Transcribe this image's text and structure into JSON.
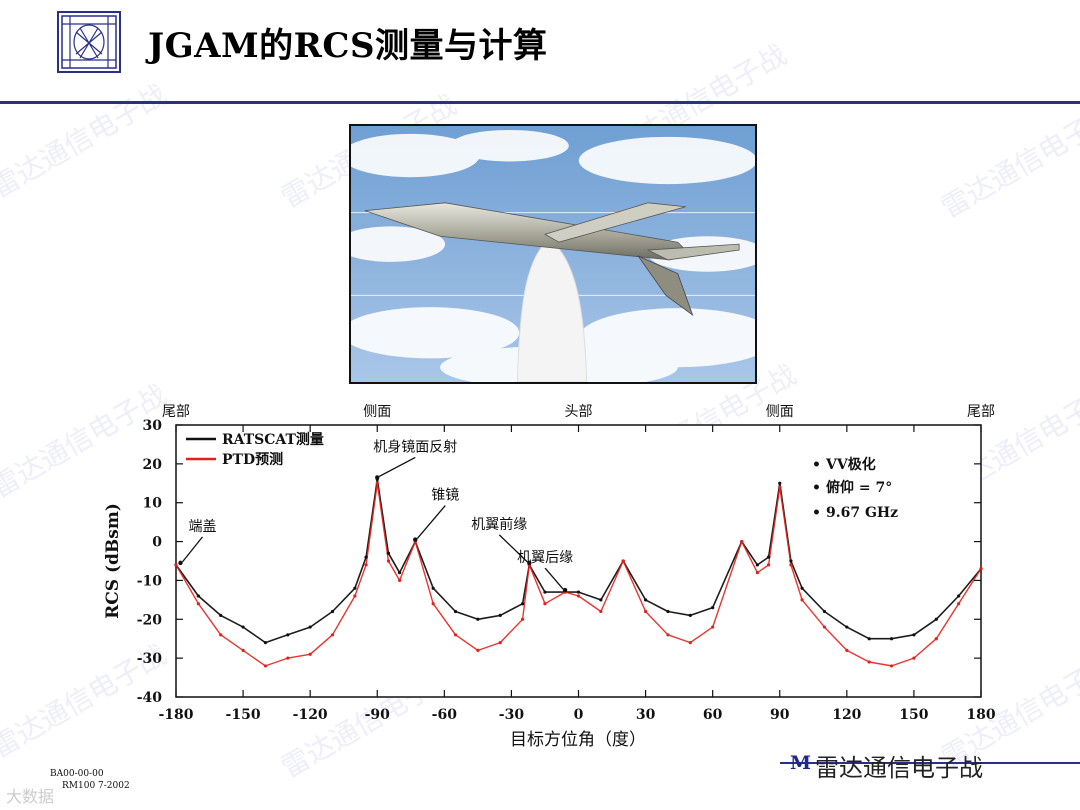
{
  "page": {
    "title": "JGAM的RCS测量与计算",
    "footer_right": "M",
    "footer_left_line1": "BA00-00-00",
    "footer_left_line2": "RM100 7-2002"
  },
  "watermark": {
    "text": "雷达通信电子战",
    "main": "雷达通信电子战",
    "corner": "大数据"
  },
  "chart_data": {
    "type": "line",
    "title": "",
    "xlabel": "目标方位角（度）",
    "ylabel": "RCS (dBsm)",
    "xlim": [
      -180,
      180
    ],
    "ylim": [
      -40,
      30
    ],
    "xticks": [
      -180,
      -150,
      -120,
      -90,
      -60,
      -30,
      0,
      30,
      60,
      90,
      120,
      150,
      180
    ],
    "yticks": [
      -40,
      -30,
      -20,
      -10,
      0,
      10,
      20,
      30
    ],
    "top_labels": [
      {
        "x": -180,
        "text": "尾部"
      },
      {
        "x": -90,
        "text": "侧面"
      },
      {
        "x": 0,
        "text": "头部"
      },
      {
        "x": 90,
        "text": "侧面"
      },
      {
        "x": 180,
        "text": "尾部"
      }
    ],
    "legend": {
      "placement": "top-left",
      "entries": [
        "RATSCAT测量",
        "PTD预测"
      ]
    },
    "info_box": [
      "VV极化",
      "俯仰 = 7°",
      "9.67 GHz"
    ],
    "annotations": [
      {
        "text": "端盖",
        "x": -178,
        "y": -6
      },
      {
        "text": "机身镜面反射",
        "x": -90,
        "y": 16
      },
      {
        "text": "锥镜",
        "x": -73,
        "y": 0
      },
      {
        "text": "机翼前缘",
        "x": -22,
        "y": -6
      },
      {
        "text": "机翼后缘",
        "x": -6,
        "y": -13
      }
    ],
    "peaks": [
      {
        "x": -180,
        "y": -6
      },
      {
        "x": -178,
        "y": -6
      },
      {
        "x": -90,
        "y": 16
      },
      {
        "x": -73,
        "y": 0
      },
      {
        "x": -22,
        "y": -6
      },
      {
        "x": -6,
        "y": -13
      },
      {
        "x": 20,
        "y": -5
      },
      {
        "x": 73,
        "y": 0
      },
      {
        "x": 90,
        "y": 15
      },
      {
        "x": 178,
        "y": -7
      }
    ],
    "series": [
      {
        "name": "RATSCAT测量",
        "color": "#111111",
        "x": [
          -180,
          -170,
          -160,
          -150,
          -140,
          -130,
          -120,
          -110,
          -100,
          -95,
          -90,
          -85,
          -80,
          -73,
          -65,
          -55,
          -45,
          -35,
          -25,
          -22,
          -15,
          -6,
          0,
          10,
          20,
          30,
          40,
          50,
          60,
          73,
          80,
          85,
          90,
          95,
          100,
          110,
          120,
          130,
          140,
          150,
          160,
          170,
          180
        ],
        "y": [
          -6,
          -14,
          -19,
          -22,
          -26,
          -24,
          -22,
          -18,
          -12,
          -4,
          16,
          -3,
          -8,
          0,
          -12,
          -18,
          -20,
          -19,
          -16,
          -6,
          -13,
          -13,
          -13,
          -15,
          -5,
          -15,
          -18,
          -19,
          -17,
          0,
          -6,
          -4,
          15,
          -5,
          -12,
          -18,
          -22,
          -25,
          -25,
          -24,
          -20,
          -14,
          -7
        ]
      },
      {
        "name": "PTD预测",
        "color": "#e4201a",
        "x": [
          -180,
          -170,
          -160,
          -150,
          -140,
          -130,
          -120,
          -110,
          -100,
          -95,
          -90,
          -85,
          -80,
          -73,
          -65,
          -55,
          -45,
          -35,
          -25,
          -22,
          -15,
          -6,
          0,
          10,
          20,
          30,
          40,
          50,
          60,
          73,
          80,
          85,
          90,
          95,
          100,
          110,
          120,
          130,
          140,
          150,
          160,
          170,
          180
        ],
        "y": [
          -6,
          -16,
          -24,
          -28,
          -32,
          -30,
          -29,
          -24,
          -14,
          -6,
          15,
          -5,
          -10,
          0,
          -16,
          -24,
          -28,
          -26,
          -20,
          -6,
          -16,
          -13,
          -14,
          -18,
          -5,
          -18,
          -24,
          -26,
          -22,
          0,
          -8,
          -6,
          14,
          -6,
          -15,
          -22,
          -28,
          -31,
          -32,
          -30,
          -25,
          -16,
          -7
        ]
      }
    ]
  }
}
